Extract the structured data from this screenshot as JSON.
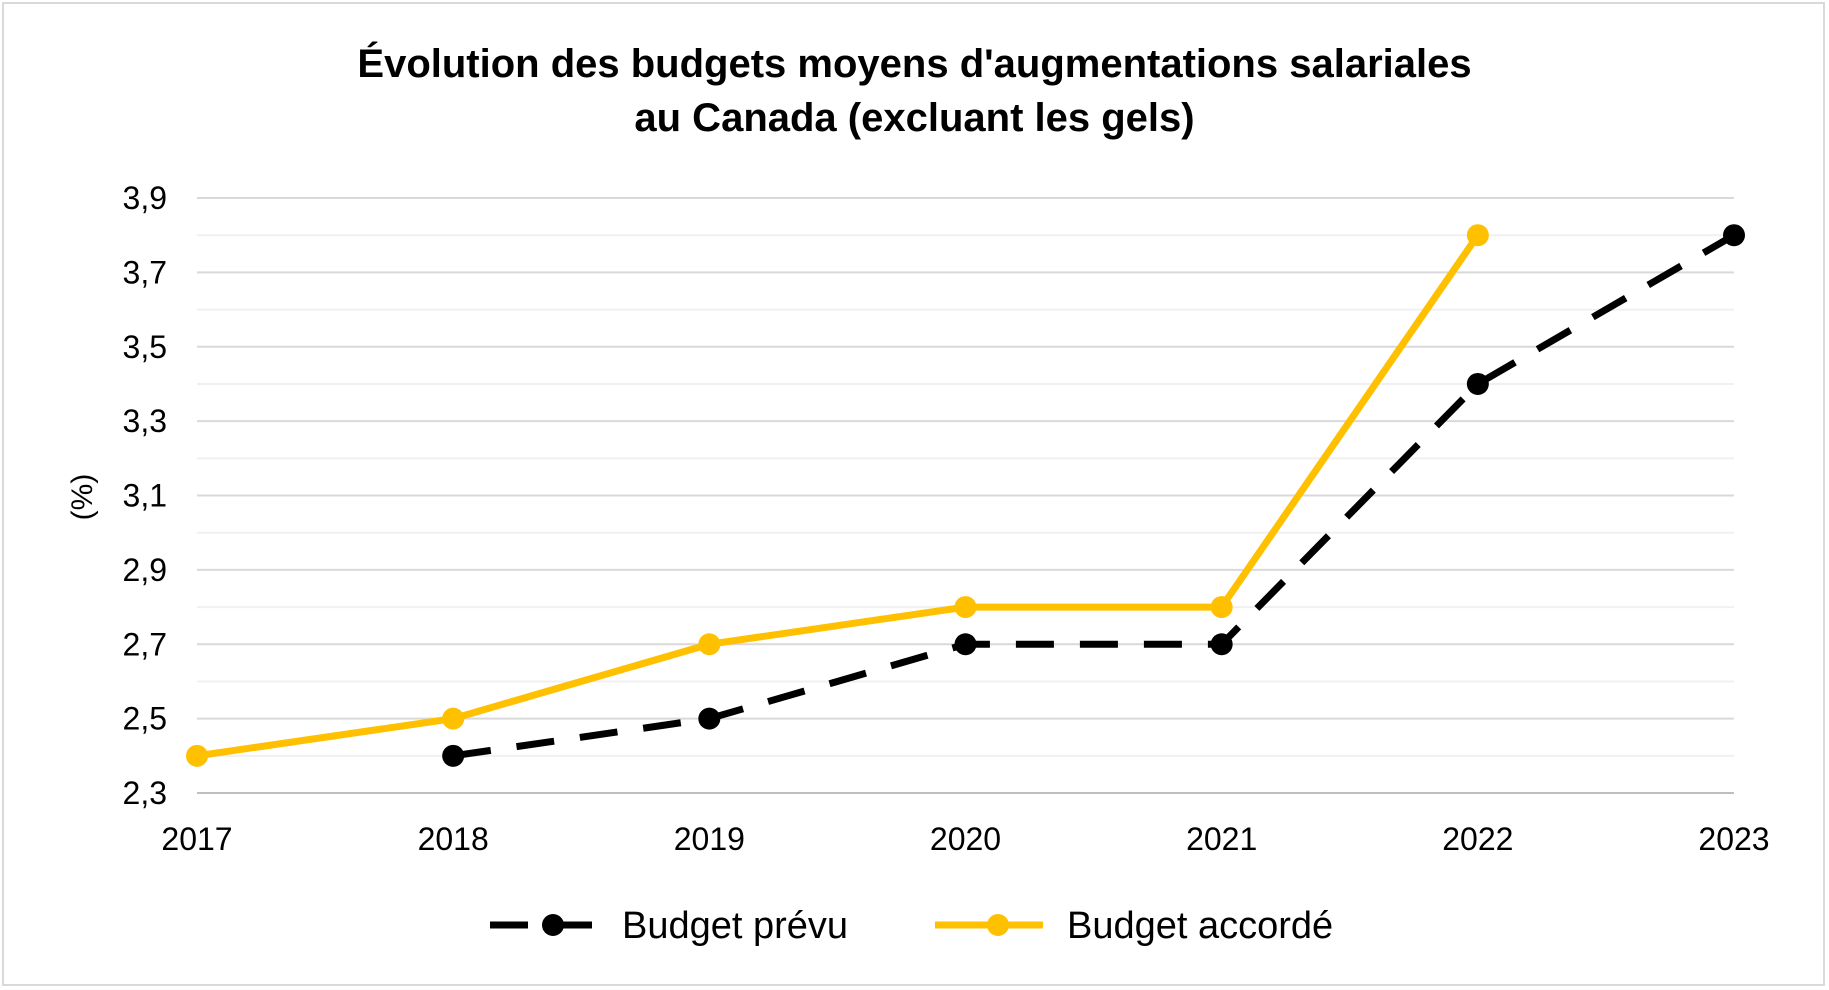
{
  "chart_data": {
    "type": "line",
    "title_line1": "Évolution des budgets moyens d'augmentations salariales",
    "title_line2": "au Canada (excluant les gels)",
    "xlabel": "",
    "ylabel": "(%)",
    "categories": [
      "2017",
      "2018",
      "2019",
      "2020",
      "2021",
      "2022",
      "2023"
    ],
    "y_ticks": [
      "2,3",
      "2,5",
      "2,7",
      "2,9",
      "3,1",
      "3,3",
      "3,5",
      "3,7",
      "3,9"
    ],
    "ylim": [
      2.3,
      3.9
    ],
    "grid": true,
    "legend_position": "bottom",
    "series": [
      {
        "name": "Budget prévu",
        "color": "#000000",
        "line_style": "dashed",
        "values": [
          null,
          2.4,
          2.5,
          2.7,
          2.7,
          3.4,
          3.8
        ]
      },
      {
        "name": "Budget accordé",
        "color": "#FFC000",
        "line_style": "solid",
        "values": [
          2.4,
          2.5,
          2.7,
          2.8,
          2.8,
          3.8,
          null
        ]
      }
    ]
  }
}
